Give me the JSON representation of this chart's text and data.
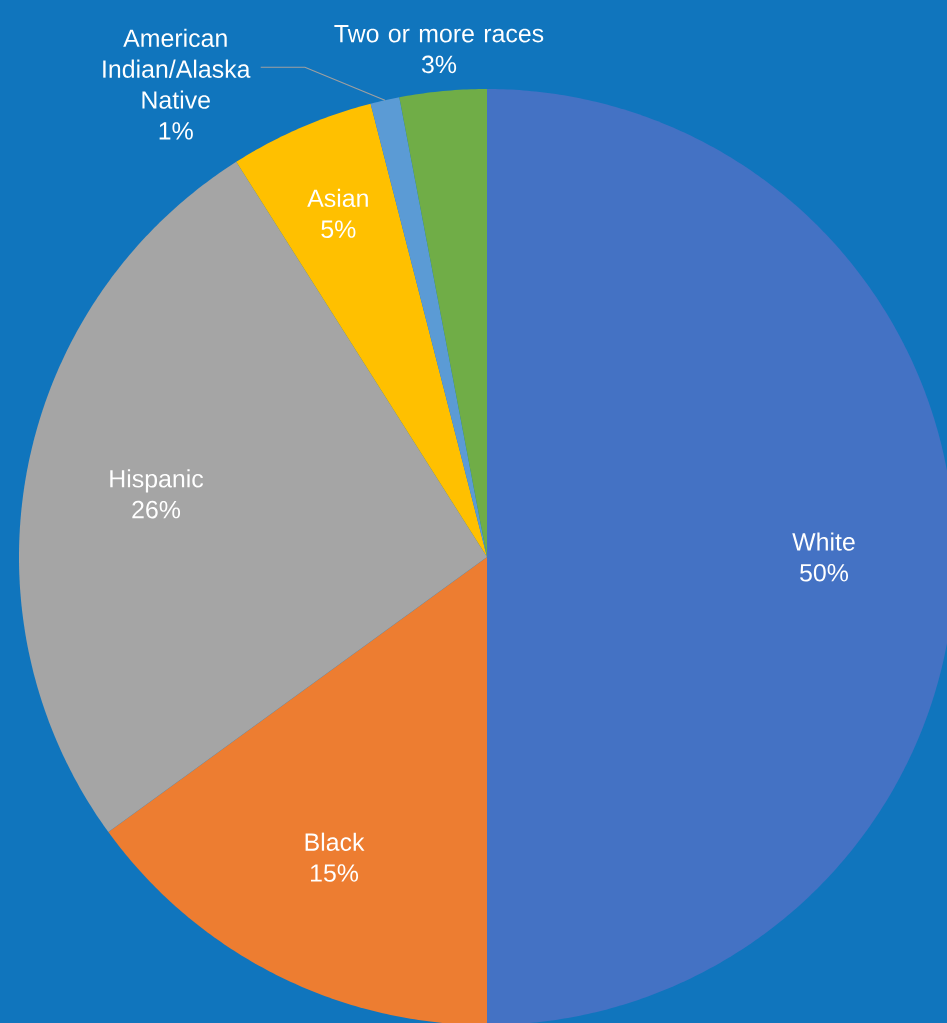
{
  "chart_data": {
    "type": "pie",
    "categories": [
      "White",
      "Black",
      "Hispanic",
      "Asian",
      "American Indian/Alaska Native",
      "Two or more races"
    ],
    "values": [
      50,
      15,
      26,
      5,
      1,
      3
    ],
    "colors": [
      "#4472c4",
      "#ed7d31",
      "#a5a5a5",
      "#ffc000",
      "#5b9bd5",
      "#70ad47"
    ],
    "value_labels": [
      "50%",
      "15%",
      "26%",
      "5%",
      "1%",
      "3%"
    ]
  }
}
